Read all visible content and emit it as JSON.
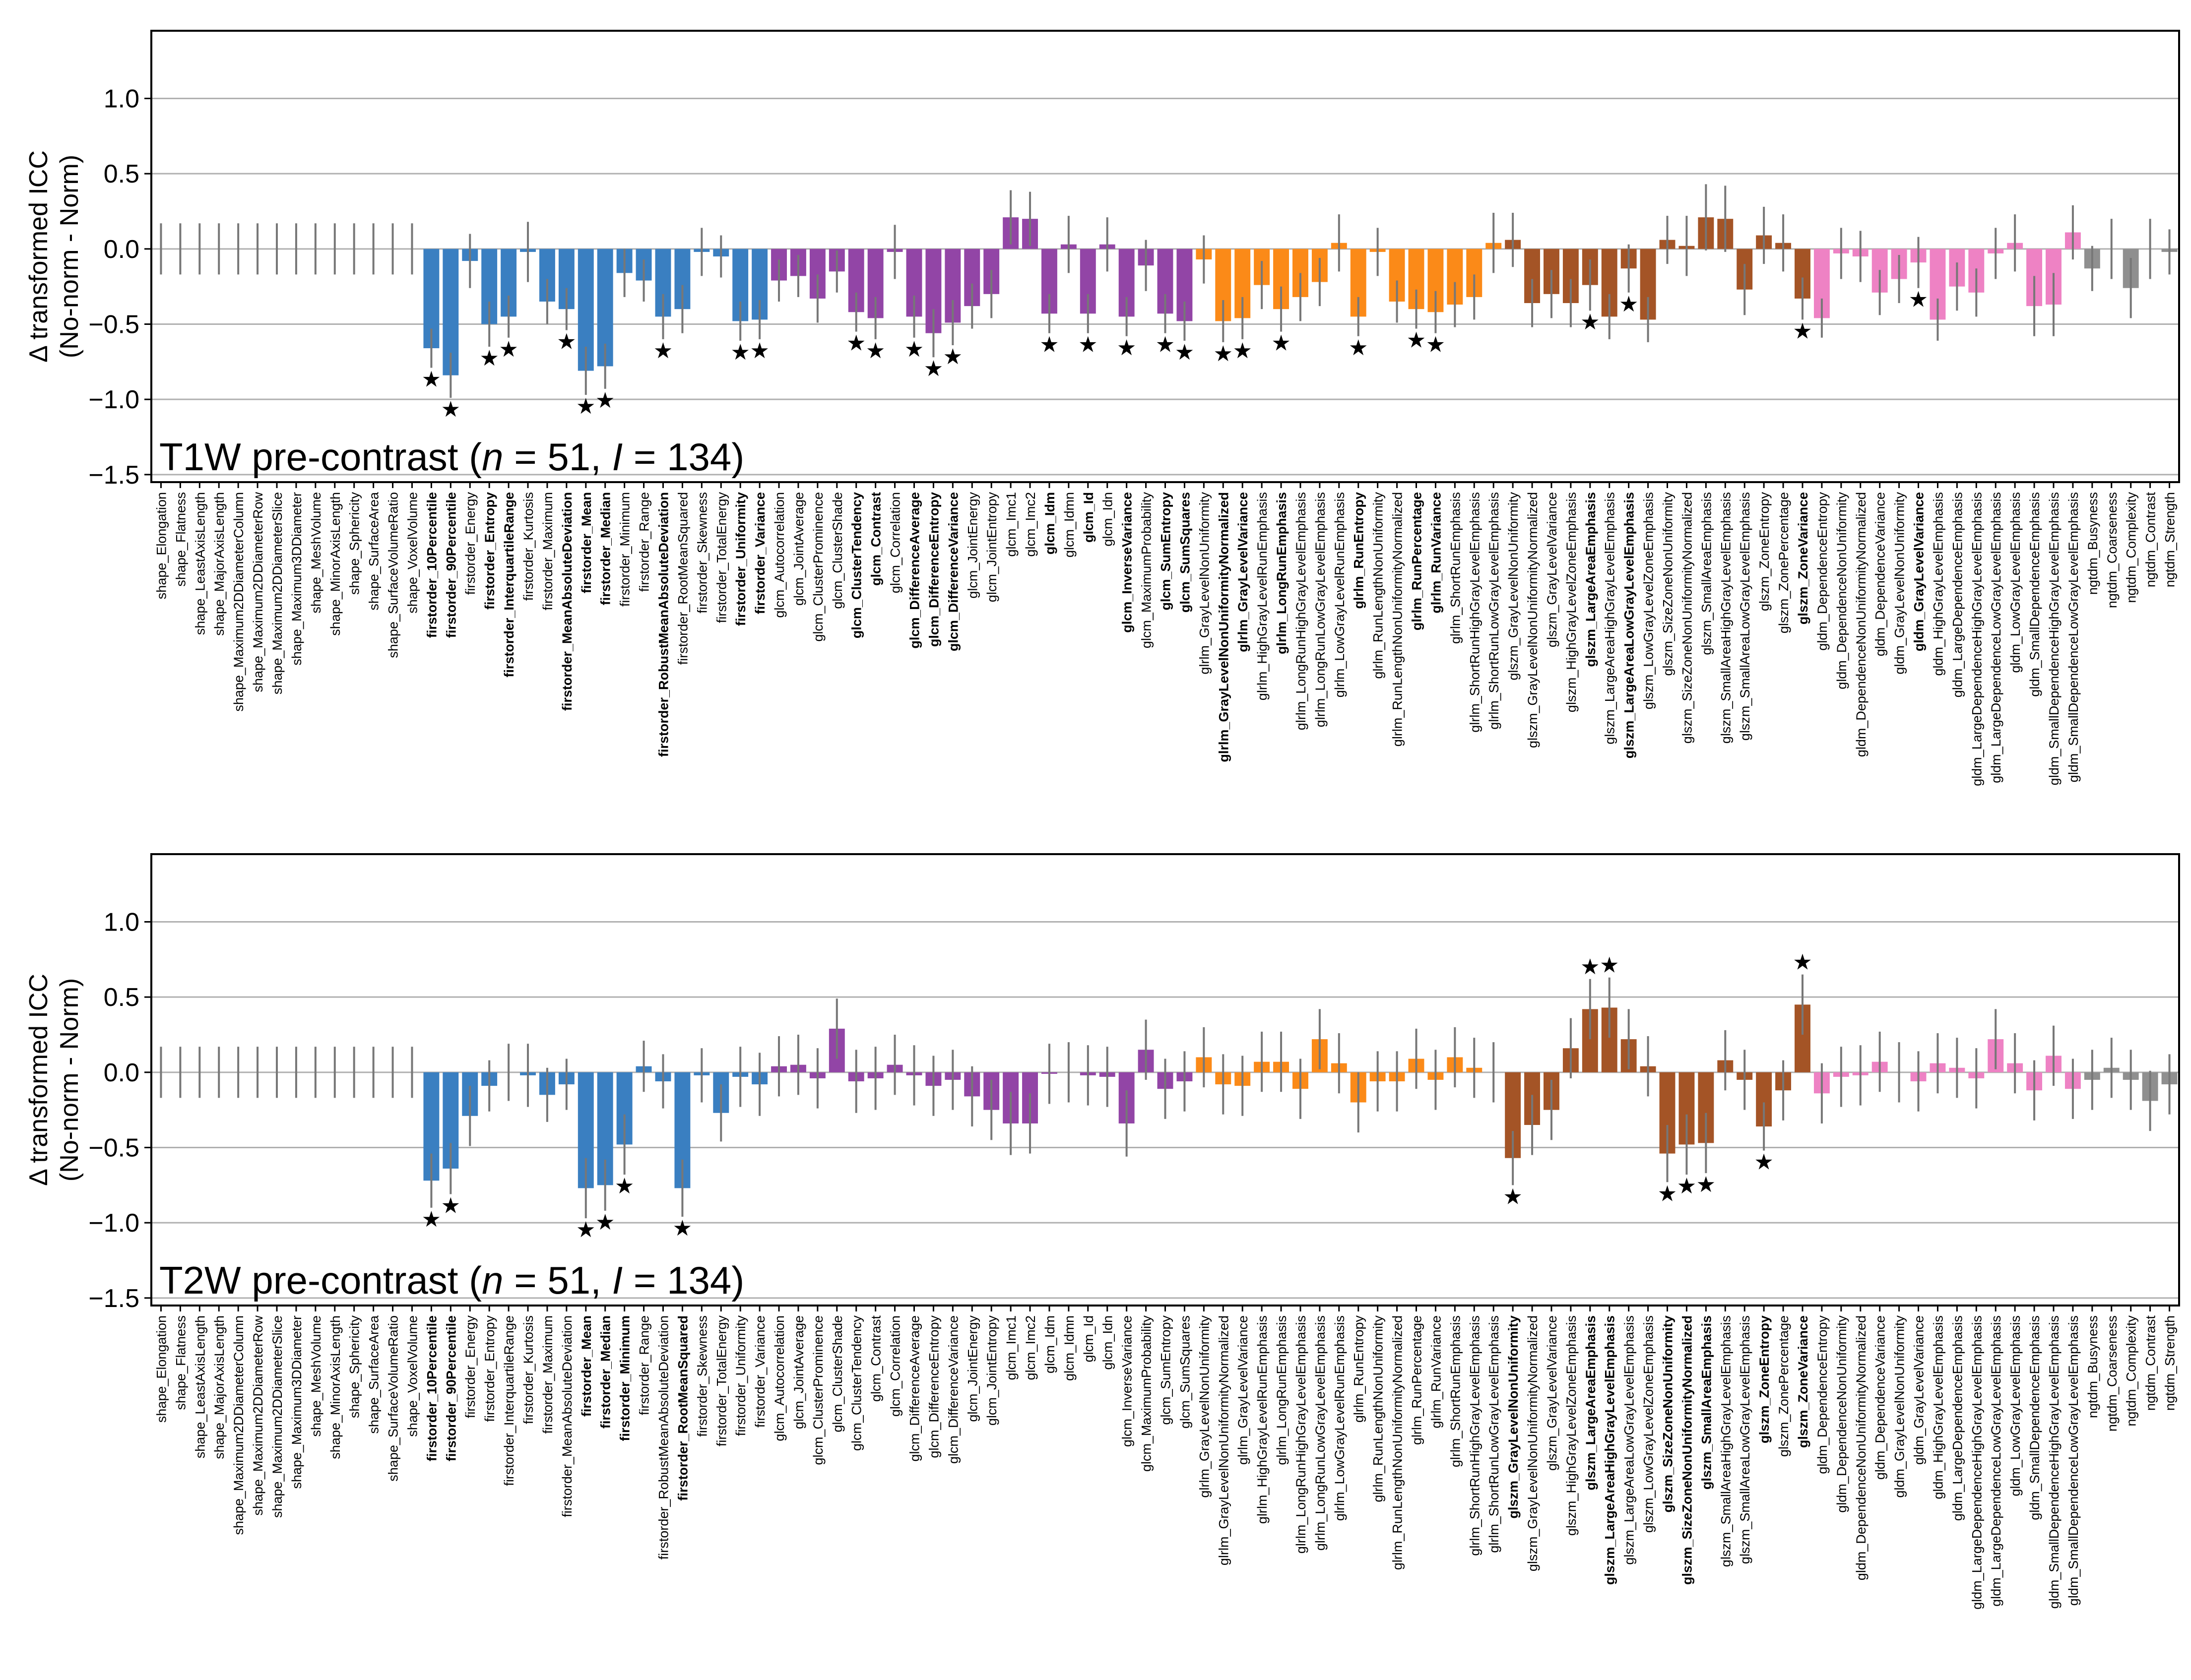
{
  "chart_data": {
    "type": "bar",
    "categories": [
      "shape_Elongation",
      "shape_Flatness",
      "shape_LeastAxisLength",
      "shape_MajorAxisLength",
      "shape_Maximum2DDiameterColumn",
      "shape_Maximum2DDiameterRow",
      "shape_Maximum2DDiameterSlice",
      "shape_Maximum3DDiameter",
      "shape_MeshVolume",
      "shape_MinorAxisLength",
      "shape_Sphericity",
      "shape_SurfaceArea",
      "shape_SurfaceVolumeRatio",
      "shape_VoxelVolume",
      "firstorder_10Percentile",
      "firstorder_90Percentile",
      "firstorder_Energy",
      "firstorder_Entropy",
      "firstorder_InterquartileRange",
      "firstorder_Kurtosis",
      "firstorder_Maximum",
      "firstorder_MeanAbsoluteDeviation",
      "firstorder_Mean",
      "firstorder_Median",
      "firstorder_Minimum",
      "firstorder_Range",
      "firstorder_RobustMeanAbsoluteDeviation",
      "firstorder_RootMeanSquared",
      "firstorder_Skewness",
      "firstorder_TotalEnergy",
      "firstorder_Uniformity",
      "firstorder_Variance",
      "glcm_Autocorrelation",
      "glcm_JointAverage",
      "glcm_ClusterProminence",
      "glcm_ClusterShade",
      "glcm_ClusterTendency",
      "glcm_Contrast",
      "glcm_Correlation",
      "glcm_DifferenceAverage",
      "glcm_DifferenceEntropy",
      "glcm_DifferenceVariance",
      "glcm_JointEnergy",
      "glcm_JointEntropy",
      "glcm_Imc1",
      "glcm_Imc2",
      "glcm_Idm",
      "glcm_Idmn",
      "glcm_Id",
      "glcm_Idn",
      "glcm_InverseVariance",
      "glcm_MaximumProbability",
      "glcm_SumEntropy",
      "glcm_SumSquares",
      "glrlm_GrayLevelNonUniformity",
      "glrlm_GrayLevelNonUniformityNormalized",
      "glrlm_GrayLevelVariance",
      "glrlm_HighGrayLevelRunEmphasis",
      "glrlm_LongRunEmphasis",
      "glrlm_LongRunHighGrayLevelEmphasis",
      "glrlm_LongRunLowGrayLevelEmphasis",
      "glrlm_LowGrayLevelRunEmphasis",
      "glrlm_RunEntropy",
      "glrlm_RunLengthNonUniformity",
      "glrlm_RunLengthNonUniformityNormalized",
      "glrlm_RunPercentage",
      "glrlm_RunVariance",
      "glrlm_ShortRunEmphasis",
      "glrlm_ShortRunHighGrayLevelEmphasis",
      "glrlm_ShortRunLowGrayLevelEmphasis",
      "glszm_GrayLevelNonUniformity",
      "glszm_GrayLevelNonUniformityNormalized",
      "glszm_GrayLevelVariance",
      "glszm_HighGrayLevelZoneEmphasis",
      "glszm_LargeAreaEmphasis",
      "glszm_LargeAreaHighGrayLevelEmphasis",
      "glszm_LargeAreaLowGrayLevelEmphasis",
      "glszm_LowGrayLevelZoneEmphasis",
      "glszm_SizeZoneNonUniformity",
      "glszm_SizeZoneNonUniformityNormalized",
      "glszm_SmallAreaEmphasis",
      "glszm_SmallAreaHighGrayLevelEmphasis",
      "glszm_SmallAreaLowGrayLevelEmphasis",
      "glszm_ZoneEntropy",
      "glszm_ZonePercentage",
      "glszm_ZoneVariance",
      "gldm_DependenceEntropy",
      "gldm_DependenceNonUniformity",
      "gldm_DependenceNonUniformityNormalized",
      "gldm_DependenceVariance",
      "gldm_GrayLevelNonUniformity",
      "gldm_GrayLevelVariance",
      "gldm_HighGrayLevelEmphasis",
      "gldm_LargeDependenceEmphasis",
      "gldm_LargeDependenceHighGrayLevelEmphasis",
      "gldm_LargeDependenceLowGrayLevelEmphasis",
      "gldm_LowGrayLevelEmphasis",
      "gldm_SmallDependenceEmphasis",
      "gldm_SmallDependenceHighGrayLevelEmphasis",
      "gldm_SmallDependenceLowGrayLevelEmphasis",
      "ngtdm_Busyness",
      "ngtdm_Coarseness",
      "ngtdm_Complexity",
      "ngtdm_Contrast",
      "ngtdm_Strength"
    ],
    "group_colors": {
      "shape": "#808080",
      "firstorder": "#3a7fc1",
      "glcm": "#9245a6",
      "glrlm": "#fb8a18",
      "glszm": "#a45426",
      "gldm": "#ee82c4",
      "ngtdm": "#8f8f8f"
    },
    "ylabel_line1": "Δ transformed ICC",
    "ylabel_line2": "(No-norm - Norm)",
    "ylim": [
      -1.55,
      1.45
    ],
    "yticks": [
      1.0,
      0.5,
      0.0,
      -0.5,
      -1.0,
      -1.5
    ],
    "ytick_labels": [
      "1.0",
      "0.5",
      "0.0",
      "−0.5",
      "−1.0",
      "−1.5"
    ],
    "grid": true,
    "panels": [
      {
        "title": "T1W pre-contrast",
        "caption_prefix": "T1W pre-contrast (",
        "n_label": "n",
        "n_value": " = 51, ",
        "i_label": "I",
        "i_value": " = 134)",
        "values": [
          0,
          0,
          0,
          0,
          0,
          0,
          0,
          0,
          0,
          0,
          0,
          0,
          0,
          0,
          -0.66,
          -0.84,
          -0.08,
          -0.5,
          -0.45,
          -0.02,
          -0.35,
          -0.4,
          -0.81,
          -0.78,
          -0.16,
          -0.21,
          -0.45,
          -0.4,
          -0.02,
          -0.05,
          -0.48,
          -0.47,
          -0.21,
          -0.18,
          -0.33,
          -0.15,
          -0.42,
          -0.46,
          -0.02,
          -0.45,
          -0.56,
          -0.49,
          -0.38,
          -0.3,
          0.21,
          0.2,
          -0.43,
          0.03,
          -0.43,
          0.03,
          -0.45,
          -0.11,
          -0.43,
          -0.48,
          -0.07,
          -0.48,
          -0.46,
          -0.24,
          -0.4,
          -0.32,
          -0.22,
          0.04,
          -0.45,
          -0.02,
          -0.35,
          -0.4,
          -0.42,
          -0.37,
          -0.32,
          0.04,
          0.06,
          -0.36,
          -0.3,
          -0.36,
          -0.24,
          -0.45,
          -0.13,
          -0.47,
          0.06,
          0.02,
          0.21,
          0.2,
          -0.27,
          0.09,
          0.04,
          -0.33,
          -0.46,
          -0.03,
          -0.05,
          -0.29,
          -0.2,
          -0.09,
          -0.47,
          -0.25,
          -0.29,
          -0.03,
          0.04,
          -0.38,
          -0.37,
          0.11,
          -0.13,
          0.0,
          -0.26,
          0.0,
          -0.02
        ],
        "errors": [
          0.17,
          0.17,
          0.17,
          0.17,
          0.17,
          0.17,
          0.17,
          0.17,
          0.17,
          0.17,
          0.17,
          0.17,
          0.17,
          0.17,
          0.13,
          0.15,
          0.18,
          0.15,
          0.14,
          0.2,
          0.15,
          0.14,
          0.16,
          0.15,
          0.16,
          0.14,
          0.15,
          0.16,
          0.16,
          0.14,
          0.13,
          0.13,
          0.14,
          0.14,
          0.16,
          0.14,
          0.13,
          0.14,
          0.18,
          0.14,
          0.16,
          0.15,
          0.15,
          0.16,
          0.18,
          0.18,
          0.13,
          0.19,
          0.13,
          0.18,
          0.13,
          0.17,
          0.13,
          0.13,
          0.16,
          0.14,
          0.14,
          0.16,
          0.15,
          0.16,
          0.16,
          0.19,
          0.13,
          0.16,
          0.14,
          0.13,
          0.14,
          0.15,
          0.15,
          0.2,
          0.18,
          0.16,
          0.16,
          0.16,
          0.17,
          0.15,
          0.16,
          0.15,
          0.16,
          0.2,
          0.22,
          0.22,
          0.17,
          0.19,
          0.19,
          0.14,
          0.13,
          0.17,
          0.17,
          0.15,
          0.16,
          0.17,
          0.14,
          0.16,
          0.16,
          0.17,
          0.19,
          0.2,
          0.21,
          0.18,
          0.15,
          0.2,
          0.2,
          0.2,
          0.15
        ],
        "significant": [
          "firstorder_10Percentile",
          "firstorder_90Percentile",
          "firstorder_Entropy",
          "firstorder_InterquartileRange",
          "firstorder_MeanAbsoluteDeviation",
          "firstorder_Mean",
          "firstorder_Median",
          "firstorder_RobustMeanAbsoluteDeviation",
          "firstorder_Uniformity",
          "firstorder_Variance",
          "glcm_ClusterTendency",
          "glcm_Contrast",
          "glcm_DifferenceAverage",
          "glcm_DifferenceEntropy",
          "glcm_DifferenceVariance",
          "glcm_Idm",
          "glcm_Id",
          "glcm_InverseVariance",
          "glcm_SumEntropy",
          "glcm_SumSquares",
          "glrlm_GrayLevelNonUniformityNormalized",
          "glrlm_GrayLevelVariance",
          "glrlm_LongRunEmphasis",
          "glrlm_RunEntropy",
          "glrlm_RunPercentage",
          "glrlm_RunVariance",
          "glszm_LargeAreaEmphasis",
          "glszm_LargeAreaLowGrayLevelEmphasis",
          "glszm_ZoneVariance",
          "gldm_GrayLevelVariance"
        ],
        "star_symbol": "★"
      },
      {
        "title": "T2W pre-contrast",
        "caption_prefix": "T2W pre-contrast (",
        "n_label": "n",
        "n_value": " = 51, ",
        "i_label": "I",
        "i_value": " = 134)",
        "values": [
          0,
          0,
          0,
          0,
          0,
          0,
          0,
          0,
          0,
          0,
          0,
          0,
          0,
          0,
          -0.72,
          -0.64,
          -0.29,
          -0.09,
          0.0,
          -0.02,
          -0.15,
          -0.08,
          -0.77,
          -0.75,
          -0.48,
          0.04,
          -0.06,
          -0.77,
          -0.02,
          -0.27,
          -0.03,
          -0.08,
          0.04,
          0.05,
          -0.04,
          0.29,
          -0.06,
          -0.04,
          0.05,
          -0.02,
          -0.09,
          -0.05,
          -0.16,
          -0.25,
          -0.34,
          -0.34,
          -0.01,
          0.0,
          -0.02,
          -0.03,
          -0.34,
          0.15,
          -0.11,
          -0.06,
          0.1,
          -0.08,
          -0.09,
          0.07,
          0.07,
          -0.11,
          0.22,
          0.06,
          -0.2,
          -0.06,
          -0.06,
          0.09,
          -0.05,
          0.1,
          0.03,
          0.0,
          -0.57,
          -0.35,
          -0.25,
          0.16,
          0.42,
          0.43,
          0.22,
          0.04,
          -0.54,
          -0.48,
          -0.47,
          0.08,
          -0.05,
          -0.36,
          -0.12,
          0.45,
          -0.14,
          -0.03,
          -0.02,
          0.07,
          0.0,
          -0.06,
          0.06,
          0.03,
          -0.04,
          0.22,
          0.06,
          -0.12,
          0.11,
          -0.11,
          -0.05,
          0.03,
          -0.05,
          -0.19,
          -0.08
        ],
        "errors": [
          0.17,
          0.17,
          0.17,
          0.17,
          0.17,
          0.17,
          0.17,
          0.17,
          0.17,
          0.17,
          0.17,
          0.17,
          0.17,
          0.17,
          0.18,
          0.17,
          0.2,
          0.17,
          0.19,
          0.21,
          0.18,
          0.17,
          0.2,
          0.17,
          0.2,
          0.17,
          0.18,
          0.19,
          0.18,
          0.19,
          0.2,
          0.21,
          0.2,
          0.2,
          0.2,
          0.2,
          0.21,
          0.21,
          0.2,
          0.2,
          0.2,
          0.2,
          0.2,
          0.2,
          0.21,
          0.2,
          0.2,
          0.2,
          0.2,
          0.2,
          0.22,
          0.2,
          0.2,
          0.2,
          0.2,
          0.2,
          0.2,
          0.2,
          0.2,
          0.2,
          0.2,
          0.2,
          0.2,
          0.2,
          0.2,
          0.2,
          0.2,
          0.2,
          0.2,
          0.2,
          0.18,
          0.2,
          0.2,
          0.2,
          0.2,
          0.2,
          0.2,
          0.2,
          0.19,
          0.2,
          0.2,
          0.2,
          0.2,
          0.16,
          0.2,
          0.2,
          0.2,
          0.2,
          0.2,
          0.2,
          0.2,
          0.2,
          0.2,
          0.2,
          0.2,
          0.2,
          0.2,
          0.2,
          0.2,
          0.2,
          0.2,
          0.2,
          0.2,
          0.2,
          0.2
        ],
        "significant": [
          "firstorder_10Percentile",
          "firstorder_90Percentile",
          "firstorder_Mean",
          "firstorder_Median",
          "firstorder_Minimum",
          "firstorder_RootMeanSquared",
          "glszm_GrayLevelNonUniformity",
          "glszm_LargeAreaEmphasis",
          "glszm_LargeAreaHighGrayLevelEmphasis",
          "glszm_SizeZoneNonUniformity",
          "glszm_SizeZoneNonUniformityNormalized",
          "glszm_SmallAreaEmphasis",
          "glszm_ZoneEntropy",
          "glszm_ZoneVariance"
        ],
        "star_symbol": "★"
      }
    ]
  }
}
